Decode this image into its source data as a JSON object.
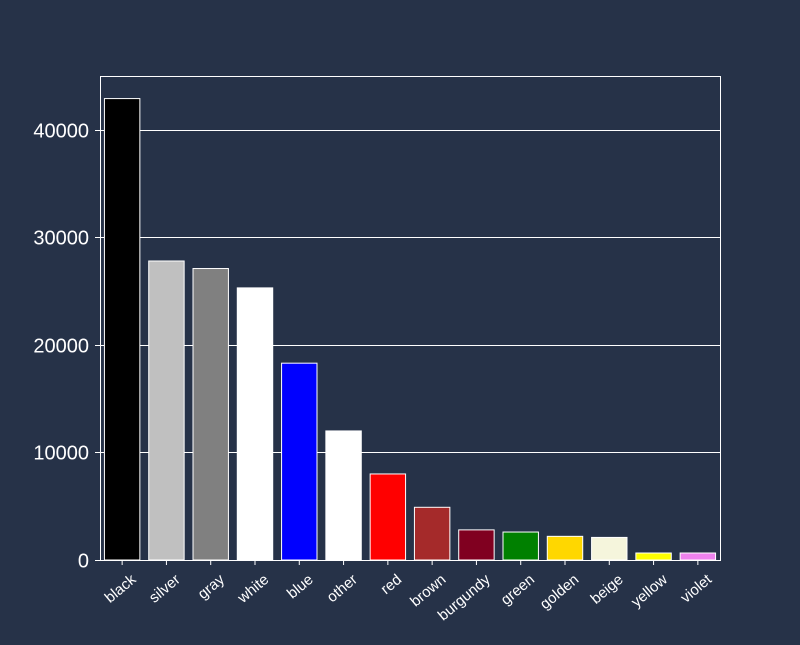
{
  "colors": {
    "background": "#263248",
    "text": "#ffffff",
    "grid": "#ffffff",
    "bar_outline": "#ffffff"
  },
  "chart_data": {
    "type": "bar",
    "title": "",
    "xlabel": "",
    "ylabel": "",
    "ylim": [
      0,
      45000
    ],
    "yticks": [
      0,
      10000,
      20000,
      30000,
      40000
    ],
    "grid": true,
    "grid_axis": "y",
    "categories": [
      "black",
      "silver",
      "gray",
      "white",
      "blue",
      "other",
      "red",
      "brown",
      "burgundy",
      "green",
      "golden",
      "beige",
      "yellow",
      "violet"
    ],
    "values": [
      42900,
      27800,
      27100,
      25300,
      18300,
      12000,
      8000,
      4900,
      2800,
      2600,
      2200,
      2100,
      650,
      650
    ],
    "bar_colors": [
      "#000000",
      "#c0c0c0",
      "#808080",
      "#ffffff",
      "#0000ff",
      "#ffffff",
      "#ff0000",
      "#a52a2a",
      "#800020",
      "#008000",
      "#ffd700",
      "#f5f5dc",
      "#ffff00",
      "#ee82ee"
    ]
  }
}
